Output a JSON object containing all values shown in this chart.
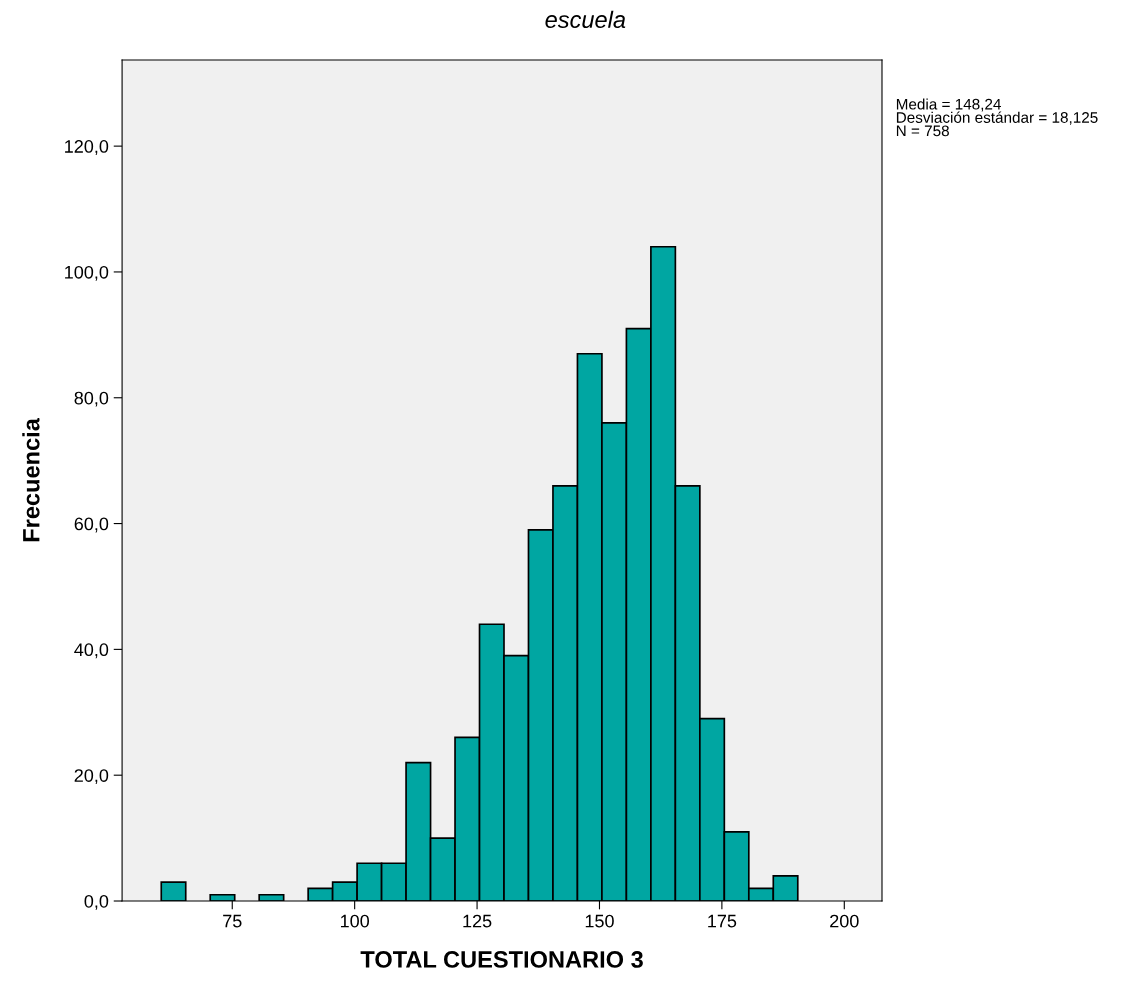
{
  "chart_data": {
    "type": "histogram",
    "title": "escuela",
    "xlabel": "TOTAL CUESTIONARIO 3",
    "ylabel": "Frecuencia",
    "bins": [
      60.5,
      65.5,
      70.5,
      75.5,
      80.5,
      85.5,
      90.5,
      95.5,
      100.5,
      105.5,
      110.5,
      115.5,
      120.5,
      125.5,
      130.5,
      135.5,
      140.5,
      145.5,
      150.5,
      155.5,
      160.5,
      165.5,
      170.5,
      175.5,
      180.5,
      185.5,
      190.5
    ],
    "values": [
      3,
      0,
      1,
      0,
      1,
      0,
      2,
      3,
      6,
      6,
      22,
      10,
      26,
      44,
      39,
      59,
      66,
      87,
      76,
      91,
      104,
      66,
      29,
      11,
      2,
      4
    ],
    "color": "#00a6a2",
    "xlim": [
      52.5,
      207.7
    ],
    "ylim": [
      0,
      133.7
    ],
    "xticks": [
      75,
      100,
      125,
      150,
      175,
      200
    ],
    "yticks": [
      {
        "value": 0,
        "label": "0,0"
      },
      {
        "value": 20,
        "label": "20,0"
      },
      {
        "value": 40,
        "label": "40,0"
      },
      {
        "value": 60,
        "label": "60,0"
      },
      {
        "value": 80,
        "label": "80,0"
      },
      {
        "value": 100,
        "label": "100,0"
      },
      {
        "value": 120,
        "label": "120,0"
      }
    ],
    "grid": false,
    "legend": false,
    "annotations": [
      "Media = 148,24",
      "Desviación estándar = 18,125",
      "N = 758"
    ]
  }
}
